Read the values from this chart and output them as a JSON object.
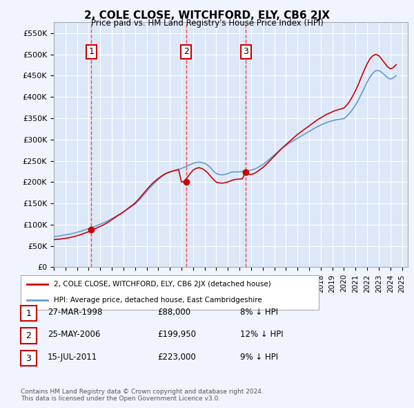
{
  "title": "2, COLE CLOSE, WITCHFORD, ELY, CB6 2JX",
  "subtitle": "Price paid vs. HM Land Registry's House Price Index (HPI)",
  "background_color": "#f0f4ff",
  "plot_bg_color": "#dce8f8",
  "ylim": [
    0,
    575000
  ],
  "yticks": [
    0,
    50000,
    100000,
    150000,
    200000,
    250000,
    300000,
    350000,
    400000,
    450000,
    500000,
    550000
  ],
  "ytick_labels": [
    "£0",
    "£50K",
    "£100K",
    "£150K",
    "£200K",
    "£250K",
    "£300K",
    "£350K",
    "£400K",
    "£450K",
    "£500K",
    "£550K"
  ],
  "xlim_start": 1995.0,
  "xlim_end": 2025.5,
  "sale_dates": [
    1998.23,
    2006.39,
    2011.54
  ],
  "sale_prices": [
    88000,
    199950,
    223000
  ],
  "sale_labels": [
    "1",
    "2",
    "3"
  ],
  "sale_marker_color": "#cc0000",
  "vline_color": "#ff4444",
  "hpi_line_color": "#6699cc",
  "price_line_color": "#cc0000",
  "legend_entries": [
    "2, COLE CLOSE, WITCHFORD, ELY, CB6 2JX (detached house)",
    "HPI: Average price, detached house, East Cambridgeshire"
  ],
  "table_rows": [
    {
      "num": "1",
      "date": "27-MAR-1998",
      "price": "£88,000",
      "hpi": "8% ↓ HPI"
    },
    {
      "num": "2",
      "date": "25-MAY-2006",
      "price": "£199,950",
      "hpi": "12% ↓ HPI"
    },
    {
      "num": "3",
      "date": "15-JUL-2011",
      "price": "£223,000",
      "hpi": "9% ↓ HPI"
    }
  ],
  "footer": "Contains HM Land Registry data © Crown copyright and database right 2024.\nThis data is licensed under the Open Government Licence v3.0.",
  "hpi_data_years": [
    1995,
    1995.25,
    1995.5,
    1995.75,
    1996,
    1996.25,
    1996.5,
    1996.75,
    1997,
    1997.25,
    1997.5,
    1997.75,
    1998,
    1998.25,
    1998.5,
    1998.75,
    1999,
    1999.25,
    1999.5,
    1999.75,
    2000,
    2000.25,
    2000.5,
    2000.75,
    2001,
    2001.25,
    2001.5,
    2001.75,
    2002,
    2002.25,
    2002.5,
    2002.75,
    2003,
    2003.25,
    2003.5,
    2003.75,
    2004,
    2004.25,
    2004.5,
    2004.75,
    2005,
    2005.25,
    2005.5,
    2005.75,
    2006,
    2006.25,
    2006.5,
    2006.75,
    2007,
    2007.25,
    2007.5,
    2007.75,
    2008,
    2008.25,
    2008.5,
    2008.75,
    2009,
    2009.25,
    2009.5,
    2009.75,
    2010,
    2010.25,
    2010.5,
    2010.75,
    2011,
    2011.25,
    2011.5,
    2011.75,
    2012,
    2012.25,
    2012.5,
    2012.75,
    2013,
    2013.25,
    2013.5,
    2013.75,
    2014,
    2014.25,
    2014.5,
    2014.75,
    2015,
    2015.25,
    2015.5,
    2015.75,
    2016,
    2016.25,
    2016.5,
    2016.75,
    2017,
    2017.25,
    2017.5,
    2017.75,
    2018,
    2018.25,
    2018.5,
    2018.75,
    2019,
    2019.25,
    2019.5,
    2019.75,
    2020,
    2020.25,
    2020.5,
    2020.75,
    2021,
    2021.25,
    2021.5,
    2021.75,
    2022,
    2022.25,
    2022.5,
    2022.75,
    2023,
    2023.25,
    2023.5,
    2023.75,
    2024,
    2024.25,
    2024.5
  ],
  "hpi_values": [
    72000,
    72500,
    73500,
    75000,
    76000,
    77000,
    78500,
    80000,
    82000,
    84000,
    86000,
    88500,
    91000,
    93500,
    96000,
    98500,
    101000,
    104000,
    107000,
    110000,
    114000,
    118000,
    122000,
    126000,
    130000,
    134500,
    139000,
    143500,
    148000,
    155000,
    162000,
    170000,
    178000,
    186000,
    193000,
    200000,
    206000,
    212000,
    217000,
    221000,
    224000,
    226000,
    228000,
    230000,
    232000,
    235000,
    238000,
    241000,
    244000,
    246000,
    247000,
    246000,
    244000,
    240000,
    234000,
    226000,
    220000,
    218000,
    217000,
    218000,
    220000,
    223000,
    224000,
    224000,
    224000,
    225000,
    226000,
    227000,
    228000,
    230000,
    233000,
    237000,
    241000,
    246000,
    252000,
    258000,
    264000,
    270000,
    276000,
    281000,
    286000,
    291000,
    295000,
    299000,
    303000,
    307000,
    311000,
    315000,
    319000,
    323000,
    327000,
    331000,
    334000,
    337000,
    340000,
    342000,
    344000,
    346000,
    347000,
    348000,
    349000,
    355000,
    362000,
    371000,
    381000,
    393000,
    407000,
    421000,
    435000,
    447000,
    456000,
    462000,
    462000,
    458000,
    452000,
    445000,
    442000,
    445000,
    450000
  ],
  "price_data_years": [
    1995,
    1995.25,
    1995.5,
    1995.75,
    1996,
    1996.25,
    1996.5,
    1996.75,
    1997,
    1997.25,
    1997.5,
    1997.75,
    1998,
    1998.25,
    1998.5,
    1998.75,
    1999,
    1999.25,
    1999.5,
    1999.75,
    2000,
    2000.25,
    2000.5,
    2000.75,
    2001,
    2001.25,
    2001.5,
    2001.75,
    2002,
    2002.25,
    2002.5,
    2002.75,
    2003,
    2003.25,
    2003.5,
    2003.75,
    2004,
    2004.25,
    2004.5,
    2004.75,
    2005,
    2005.25,
    2005.5,
    2005.75,
    2006,
    2006.25,
    2006.5,
    2006.75,
    2007,
    2007.25,
    2007.5,
    2007.75,
    2008,
    2008.25,
    2008.5,
    2008.75,
    2009,
    2009.25,
    2009.5,
    2009.75,
    2010,
    2010.25,
    2010.5,
    2010.75,
    2011,
    2011.25,
    2011.5,
    2011.75,
    2012,
    2012.25,
    2012.5,
    2012.75,
    2013,
    2013.25,
    2013.5,
    2013.75,
    2014,
    2014.25,
    2014.5,
    2014.75,
    2015,
    2015.25,
    2015.5,
    2015.75,
    2016,
    2016.25,
    2016.5,
    2016.75,
    2017,
    2017.25,
    2017.5,
    2017.75,
    2018,
    2018.25,
    2018.5,
    2018.75,
    2019,
    2019.25,
    2019.5,
    2019.75,
    2020,
    2020.25,
    2020.5,
    2020.75,
    2021,
    2021.25,
    2021.5,
    2021.75,
    2022,
    2022.25,
    2022.5,
    2022.75,
    2023,
    2023.25,
    2023.5,
    2023.75,
    2024,
    2024.25,
    2024.5
  ],
  "price_values": [
    65000,
    65500,
    66000,
    67000,
    68000,
    69000,
    70500,
    72000,
    74000,
    76000,
    78500,
    81000,
    83500,
    88000,
    90000,
    93000,
    96000,
    99000,
    103000,
    107000,
    112000,
    116000,
    121000,
    125000,
    130000,
    135000,
    140500,
    145500,
    151000,
    158000,
    166000,
    174000,
    182000,
    190000,
    197000,
    203000,
    208500,
    213500,
    218000,
    221500,
    224000,
    226000,
    227500,
    229500,
    199950,
    202000,
    211000,
    220000,
    228000,
    232000,
    234000,
    232000,
    228000,
    222000,
    214000,
    206000,
    200000,
    198000,
    197500,
    198500,
    200500,
    203000,
    205500,
    206500,
    207000,
    208000,
    223000,
    219000,
    218000,
    220000,
    224000,
    229000,
    234000,
    240000,
    247000,
    254000,
    261000,
    268000,
    275000,
    282000,
    288000,
    294000,
    300000,
    306000,
    312000,
    317000,
    322000,
    327000,
    332000,
    337000,
    342000,
    347000,
    351000,
    355000,
    359000,
    362000,
    365000,
    368000,
    370000,
    372000,
    374000,
    381000,
    390000,
    402000,
    415000,
    430000,
    447000,
    463000,
    478000,
    490000,
    497000,
    500000,
    497000,
    489000,
    480000,
    471000,
    466000,
    469000,
    476000
  ]
}
